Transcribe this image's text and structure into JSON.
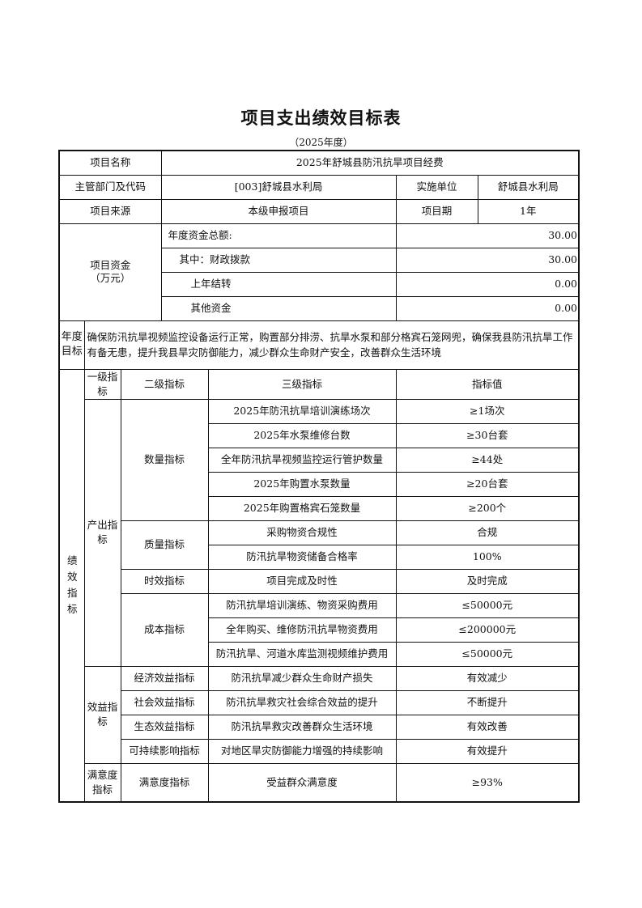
{
  "title": "项目支出绩效目标表",
  "subtitle": "（2025年度）",
  "project_name_label": "项目名称",
  "project_name": "2025年舒城县防汛抗旱项目经费",
  "dept_label": "主管部门及代码",
  "dept": "[003]舒城县水利局",
  "impl_label": "实施单位",
  "impl": "舒城县水利局",
  "source_label": "项目来源",
  "source": "本级申报项目",
  "period_label": "项目期",
  "period": "1年",
  "funds": {
    "label": "项目资金",
    "unit": "（万元）",
    "rows": [
      {
        "label": "年度资金总额:",
        "value": "30.00"
      },
      {
        "label": "其中：财政拨款",
        "value": "30.00"
      },
      {
        "label": "上年结转",
        "value": "0.00"
      },
      {
        "label": "其他资金",
        "value": "0.00"
      }
    ]
  },
  "goal_label": "年度目标",
  "goal": "确保防汛抗旱视频监控设备运行正常，购置部分排涝、抗旱水泵和部分格宾石笼网兜，确保我县防汛抗旱工作有备无患，提升我县旱灾防御能力，减少群众生命财产安全，改善群众生活环境",
  "perf": {
    "label": "绩效指标",
    "headers": [
      "一级指标",
      "二级指标",
      "三级指标",
      "指标值"
    ],
    "groups": [
      {
        "level1": "产出指标",
        "subs": [
          {
            "level2": "数量指标",
            "items": [
              [
                "2025年防汛抗旱培训演练场次",
                "≥1场次"
              ],
              [
                "2025年水泵维修台数",
                "≥30台套"
              ],
              [
                "全年防汛抗旱视频监控运行管护数量",
                "≥44处"
              ],
              [
                "2025年购置水泵数量",
                "≥20台套"
              ],
              [
                "2025年购置格宾石笼数量",
                "≥200个"
              ]
            ]
          },
          {
            "level2": "质量指标",
            "items": [
              [
                "采购物资合规性",
                "合规"
              ],
              [
                "防汛抗旱物资储备合格率",
                "100%"
              ]
            ]
          },
          {
            "level2": "时效指标",
            "items": [
              [
                "项目完成及时性",
                "及时完成"
              ]
            ]
          },
          {
            "level2": "成本指标",
            "items": [
              [
                "防汛抗旱培训演练、物资采购费用",
                "≤50000元"
              ],
              [
                "全年购买、维修防汛抗旱物资费用",
                "≤200000元"
              ],
              [
                "防汛抗旱、河道水库监测视频维护费用",
                "≤50000元"
              ]
            ]
          }
        ]
      },
      {
        "level1": "效益指标",
        "subs": [
          {
            "level2": "经济效益指标",
            "items": [
              [
                "防汛抗旱减少群众生命财产损失",
                "有效减少"
              ]
            ]
          },
          {
            "level2": "社会效益指标",
            "items": [
              [
                "防汛抗旱救灾社会综合效益的提升",
                "不断提升"
              ]
            ]
          },
          {
            "level2": "生态效益指标",
            "items": [
              [
                "防汛抗旱救灾改善群众生活环境",
                "有效改善"
              ]
            ]
          },
          {
            "level2": "可持续影响指标",
            "items": [
              [
                "对地区旱灾防御能力增强的持续影响",
                "有效提升"
              ]
            ]
          }
        ]
      },
      {
        "level1": "满意度指标",
        "subs": [
          {
            "level2": "满意度指标",
            "items": [
              [
                "受益群众满意度",
                "≥93%"
              ]
            ]
          }
        ]
      }
    ]
  }
}
